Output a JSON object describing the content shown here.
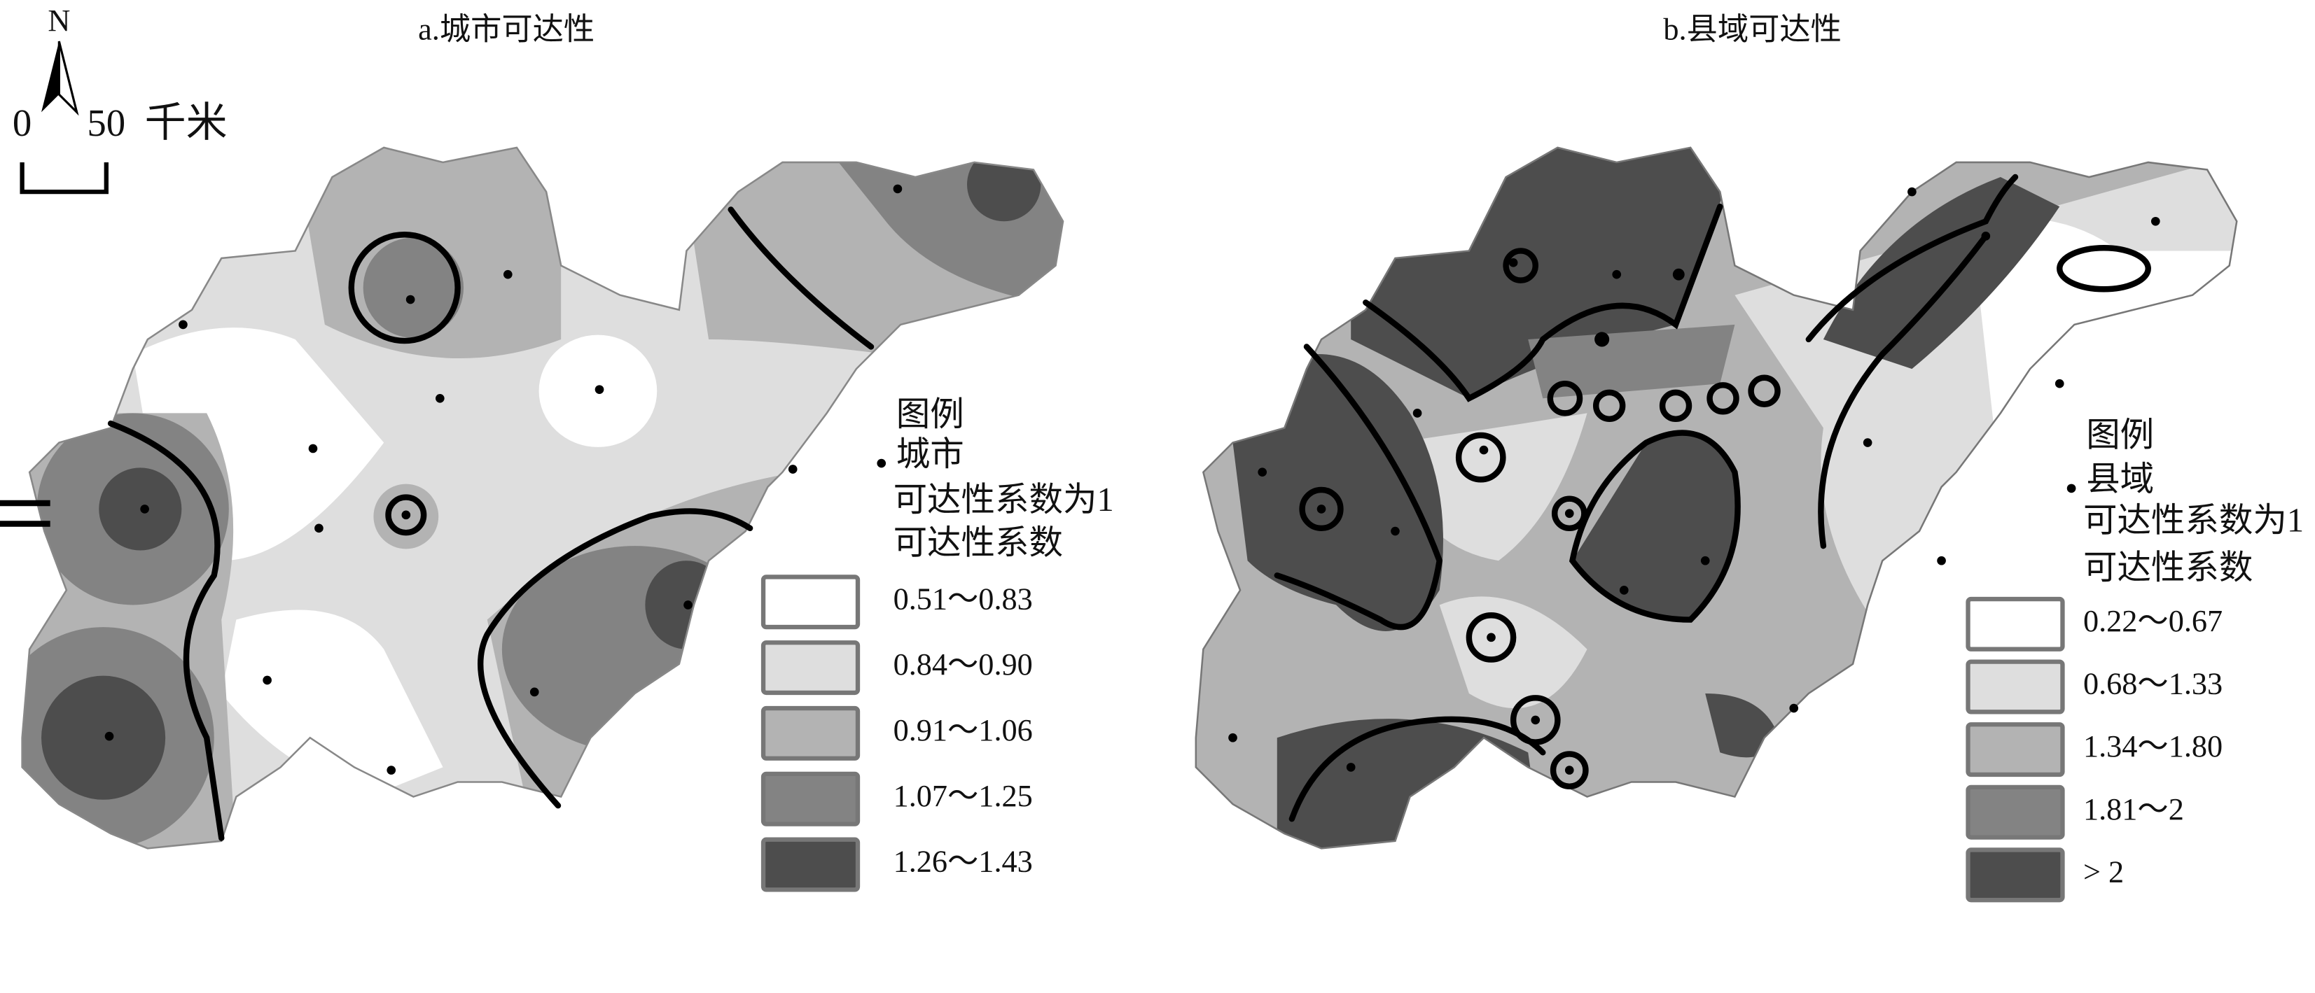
{
  "north_arrow": {
    "label": "N"
  },
  "scale_bar": {
    "start": "0",
    "end": "50",
    "unit": "千米"
  },
  "maps": [
    {
      "title": "a.城市可达性",
      "legend": {
        "title": "图例",
        "point": "城市",
        "line": "可达性系数为1",
        "fill_title": "可达性系数",
        "classes": [
          {
            "label": "0.51～0.83",
            "color": "#ffffff"
          },
          {
            "label": "0.84～0.90",
            "color": "#dedede"
          },
          {
            "label": "0.91～1.06",
            "color": "#b3b3b3"
          },
          {
            "label": "1.07～1.25",
            "color": "#838383"
          },
          {
            "label": "1.26～1.43",
            "color": "#4d4d4d"
          }
        ]
      }
    },
    {
      "title": "b.县域可达性",
      "legend": {
        "title": "图例",
        "point": "县域",
        "line": "可达性系数为1",
        "fill_title": "可达性系数",
        "classes": [
          {
            "label": "0.22～0.67",
            "color": "#ffffff"
          },
          {
            "label": "0.68～1.33",
            "color": "#dedede"
          },
          {
            "label": "1.34～1.80",
            "color": "#b3b3b3"
          },
          {
            "label": "1.81～2",
            "color": "#838383"
          },
          {
            "label": "> 2",
            "color": "#4d4d4d"
          }
        ]
      }
    }
  ]
}
